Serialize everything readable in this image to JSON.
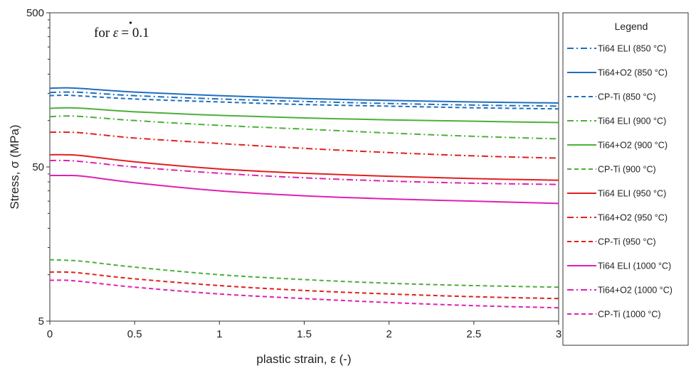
{
  "chart_data": {
    "type": "line",
    "annotation_prefix": "for ",
    "annotation_symbol": "ε",
    "annotation_value": "= 0.1",
    "xlabel": "plastic strain, ε (-)",
    "ylabel": "Stress, σ (MPa)",
    "xlim": [
      0,
      3
    ],
    "ylim": [
      5,
      500
    ],
    "yscale": "log",
    "x_ticks": [
      "0",
      "0.5",
      "1",
      "1.5",
      "2",
      "2.5",
      "3"
    ],
    "y_ticks": [
      "5",
      "50",
      "500"
    ],
    "grid": false,
    "legend_title": "Legend",
    "legend_position": "right",
    "x": [
      0,
      0.1,
      0.2,
      0.5,
      1,
      1.5,
      2,
      2.5,
      3
    ],
    "series": [
      {
        "name": "Ti64 ELI (850 °C)",
        "color": "#1f6fbf",
        "dash": "dashdot",
        "values": [
          152,
          153,
          152,
          145,
          138,
          133,
          129,
          126,
          124
        ]
      },
      {
        "name": "Ti64+O2 (850 °C)",
        "color": "#1f6fbf",
        "dash": "solid",
        "values": [
          162,
          163,
          161,
          153,
          145,
          139,
          135,
          132,
          130
        ]
      },
      {
        "name": "CP-Ti (850 °C)",
        "color": "#1f6fbf",
        "dash": "dash",
        "values": [
          145,
          146,
          144,
          138,
          132,
          127,
          124,
          121,
          119
        ]
      },
      {
        "name": "Ti64 ELI (900 °C)",
        "color": "#4caf3a",
        "dash": "dashdot",
        "values": [
          106,
          107,
          106,
          100,
          93,
          88,
          83,
          79,
          76
        ]
      },
      {
        "name": "Ti64+O2 (900 °C)",
        "color": "#4caf3a",
        "dash": "solid",
        "values": [
          120,
          121,
          120,
          114,
          108,
          104,
          101,
          99,
          97
        ]
      },
      {
        "name": "CP-Ti (900 °C)",
        "color": "#4caf3a",
        "dash": "dash",
        "values": [
          12.5,
          12.4,
          12.2,
          11.2,
          10.0,
          9.3,
          8.8,
          8.5,
          8.3
        ]
      },
      {
        "name": "Ti64 ELI (950 °C)",
        "color": "#e02020",
        "dash": "solid",
        "values": [
          60,
          60,
          59,
          54,
          48.5,
          45.5,
          43.5,
          42,
          41
        ]
      },
      {
        "name": "Ti64+O2 (950 °C)",
        "color": "#e02020",
        "dash": "dashdot",
        "values": [
          84,
          84,
          83,
          77,
          71,
          66,
          62,
          59,
          57
        ]
      },
      {
        "name": "CP-Ti (950 °C)",
        "color": "#e02020",
        "dash": "dash",
        "values": [
          10.4,
          10.4,
          10.2,
          9.4,
          8.5,
          7.9,
          7.5,
          7.2,
          7.0
        ]
      },
      {
        "name": "Ti64 ELI (1000 °C)",
        "color": "#e020b0",
        "dash": "solid",
        "values": [
          44,
          44,
          43.5,
          39.5,
          35,
          32.5,
          31,
          30,
          29
        ]
      },
      {
        "name": "Ti64+O2 (1000 °C)",
        "color": "#e020b0",
        "dash": "dashdot",
        "values": [
          55,
          55,
          54,
          50,
          45.5,
          42.5,
          40.5,
          39.2,
          38.5
        ]
      },
      {
        "name": "CP-Ti (1000 °C)",
        "color": "#e020b0",
        "dash": "dash",
        "values": [
          9.2,
          9.2,
          9.0,
          8.3,
          7.5,
          7.0,
          6.6,
          6.3,
          6.1
        ]
      }
    ]
  }
}
